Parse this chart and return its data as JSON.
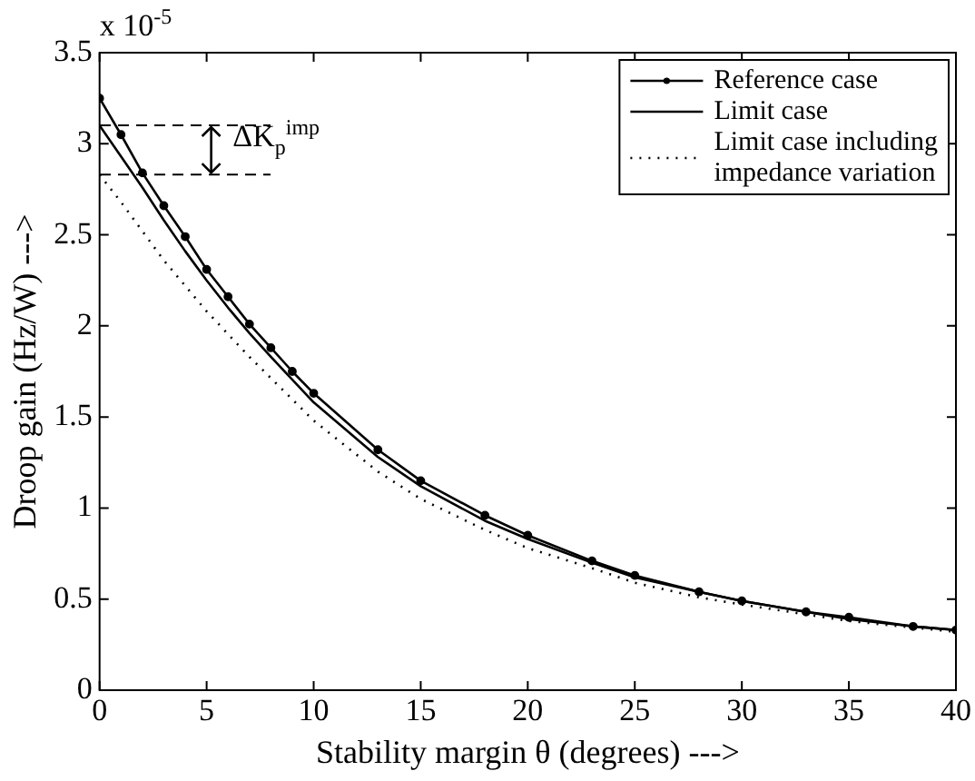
{
  "chart_data": {
    "type": "line",
    "xlabel": "Stability margin θ (degrees) --->",
    "ylabel": "Droop gain (Hz/W) --->",
    "xlim": [
      0,
      40
    ],
    "xticks": [
      0,
      5,
      10,
      15,
      20,
      25,
      30,
      35,
      40
    ],
    "ylim": [
      0,
      3.5
    ],
    "yticks": [
      0,
      0.5,
      1,
      1.5,
      2,
      2.5,
      3,
      3.5
    ],
    "grid": false,
    "legend": "top right",
    "series": [
      {
        "name": "Reference case",
        "color": "#000000",
        "marker": "circle",
        "line_style": "solid",
        "x": [
          0,
          1,
          2,
          3,
          4,
          5,
          6,
          7,
          8,
          9,
          10,
          13,
          15,
          18,
          20,
          23,
          25,
          28,
          30,
          33,
          35,
          38,
          40
        ],
        "values": [
          3.25,
          3.05,
          2.84,
          2.66,
          2.49,
          2.31,
          2.16,
          2.01,
          1.88,
          1.75,
          1.63,
          1.32,
          1.15,
          0.96,
          0.85,
          0.71,
          0.63,
          0.54,
          0.49,
          0.43,
          0.4,
          0.35,
          0.33
        ]
      },
      {
        "name": "Limit case",
        "color": "#000000",
        "marker": "none",
        "line_style": "solid",
        "x": [
          0,
          1,
          2,
          3,
          4,
          5,
          6,
          7,
          8,
          10,
          13,
          15,
          18,
          20,
          23,
          25,
          28,
          30,
          33,
          35,
          38,
          40
        ],
        "values": [
          3.1,
          2.93,
          2.76,
          2.58,
          2.41,
          2.25,
          2.1,
          1.96,
          1.83,
          1.58,
          1.28,
          1.12,
          0.93,
          0.83,
          0.7,
          0.62,
          0.54,
          0.49,
          0.43,
          0.39,
          0.35,
          0.33
        ]
      },
      {
        "name": "Limit case including impedance variation",
        "color": "#000000",
        "marker": "none",
        "line_style": "dotted",
        "x": [
          0,
          1,
          2,
          3,
          4,
          5,
          7,
          10,
          13,
          15,
          18,
          20,
          23,
          25,
          28,
          30,
          35,
          40
        ],
        "values": [
          2.83,
          2.68,
          2.52,
          2.36,
          2.22,
          2.08,
          1.83,
          1.48,
          1.2,
          1.05,
          0.88,
          0.78,
          0.67,
          0.59,
          0.51,
          0.47,
          0.38,
          0.32
        ]
      }
    ],
    "annotations": [
      "x 10$^{-5}$",
      {
        "text": "ΔK$_{p}$$^{imp}$",
        "x": 0,
        "y": 3.1
      }
    ]
  }
}
